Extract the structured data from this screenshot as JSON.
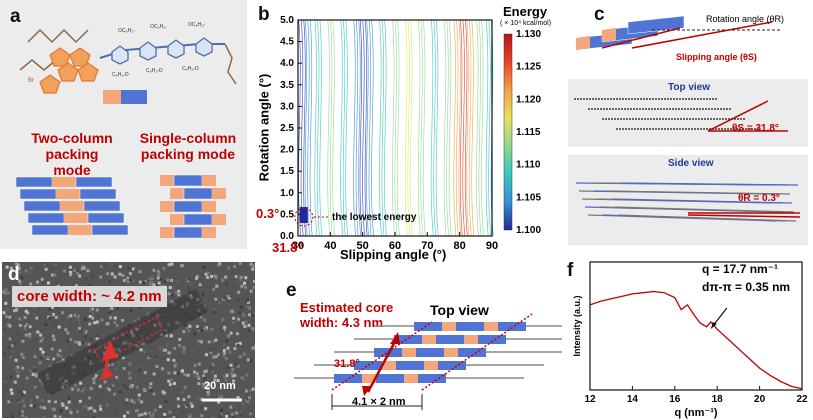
{
  "panels": {
    "a": {
      "label": "a",
      "two_column_title": "Two-column packing mode",
      "two_column_lines": [
        "Two-column",
        "packing mode"
      ],
      "single_column_lines": [
        "Single-column",
        "packing mode"
      ],
      "molecule_labels": [
        "OC₈H₁₇",
        "OC₈H₁₇",
        "OC₈H₁₇",
        "C₈H₁₇O",
        "C₈H₁₇O",
        "C₈H₁₇O",
        "Br"
      ]
    },
    "b": {
      "label": "b",
      "energy_title": "Energy",
      "energy_unit": "( × 10⁴ kcal/mol)",
      "xlabel": "Slipping angle (°)",
      "ylabel": "Rotation angle (°)",
      "annotation_rot": "0.3°",
      "annotation_slip": "31.8°",
      "annotation_text": "the lowest energy"
    },
    "c": {
      "label": "c",
      "rotation_label": "Rotation angle (θR)",
      "slipping_label": "Slipping angle (θS)",
      "top_view": "Top view",
      "theta_s": "θS = 31.8°",
      "side_view": "Side view",
      "theta_r": "θR = 0.3°"
    },
    "d": {
      "label": "d",
      "core_width": "core width: ~ 4.2 nm",
      "scale_bar": "20 nm"
    },
    "e": {
      "label": "e",
      "estimated": "Estimated core",
      "estimated2": "width: 4.3 nm",
      "top_view": "Top view",
      "angle": "31.8°",
      "dimension": "4.1 × 2 nm"
    },
    "f": {
      "label": "f",
      "q_value": "q = 17.7 nm⁻¹",
      "d_value": "dπ-π = 0.35 nm"
    }
  },
  "chart_data": [
    {
      "type": "contour",
      "panel": "b",
      "xlabel": "Slipping angle (°)",
      "ylabel": "Rotation angle (°)",
      "xlim": [
        30,
        90
      ],
      "ylim": [
        0,
        5
      ],
      "x_ticks": [
        30,
        40,
        50,
        60,
        70,
        80,
        90
      ],
      "y_ticks": [
        0,
        0.5,
        1.0,
        1.5,
        2.0,
        2.5,
        3.0,
        3.5,
        4.0,
        4.5,
        5.0
      ],
      "colorbar_title": "Energy",
      "colorbar_unit": "( × 10⁴ kcal/mol)",
      "colorbar_range": [
        1.1,
        1.13
      ],
      "colorbar_ticks": [
        1.13,
        1.125,
        1.12,
        1.115,
        1.11,
        1.105,
        1.1
      ],
      "minimum": {
        "slipping": 31.8,
        "rotation": 0.3
      }
    },
    {
      "type": "line",
      "panel": "f",
      "xlabel": "q (nm⁻¹)",
      "ylabel": "Intensity (a.u.)",
      "xlim": [
        12,
        22
      ],
      "x_ticks": [
        12,
        14,
        16,
        18,
        20,
        22
      ],
      "x": [
        12.0,
        12.5,
        13.0,
        13.5,
        14.0,
        14.5,
        15.0,
        15.5,
        16.0,
        16.3,
        16.6,
        16.9,
        17.2,
        17.5,
        17.7,
        18.0,
        18.5,
        19.0,
        19.5,
        20.0,
        20.5,
        21.0,
        21.5,
        22.0
      ],
      "y": [
        0.7,
        0.73,
        0.75,
        0.77,
        0.79,
        0.8,
        0.81,
        0.8,
        0.76,
        0.66,
        0.7,
        0.62,
        0.55,
        0.52,
        0.56,
        0.5,
        0.42,
        0.34,
        0.26,
        0.18,
        0.12,
        0.07,
        0.03,
        0.01
      ],
      "peak": {
        "q": 17.7
      }
    }
  ]
}
